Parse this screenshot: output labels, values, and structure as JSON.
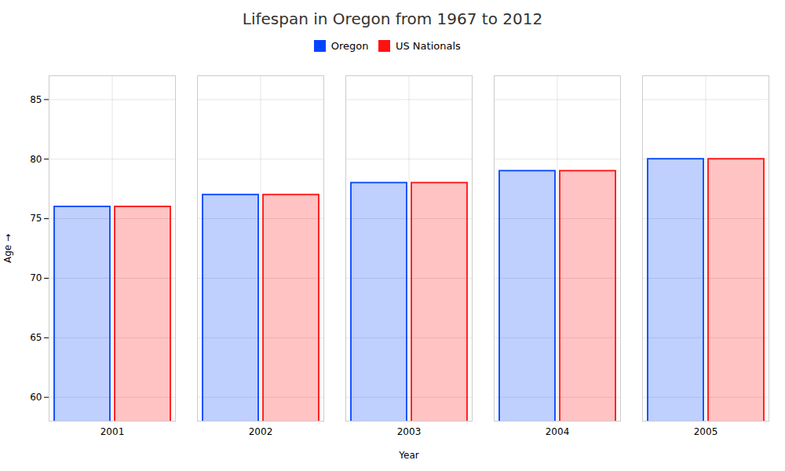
{
  "chart_data": {
    "type": "bar",
    "title": "Lifespan in Oregon from 1967 to 2012",
    "xlabel": "Year",
    "ylabel": "Age",
    "categories": [
      2001,
      2002,
      2003,
      2004,
      2005
    ],
    "series": [
      {
        "name": "Oregon",
        "color": "#0044ff",
        "values": [
          76,
          77,
          78,
          79,
          80
        ]
      },
      {
        "name": "US Nationals",
        "color": "#ff1111",
        "values": [
          76,
          77,
          78,
          79,
          80
        ]
      }
    ],
    "ylim": [
      58,
      87
    ],
    "yticks": [
      60,
      65,
      70,
      75,
      80,
      85
    ],
    "grid": true,
    "legend": "top"
  }
}
